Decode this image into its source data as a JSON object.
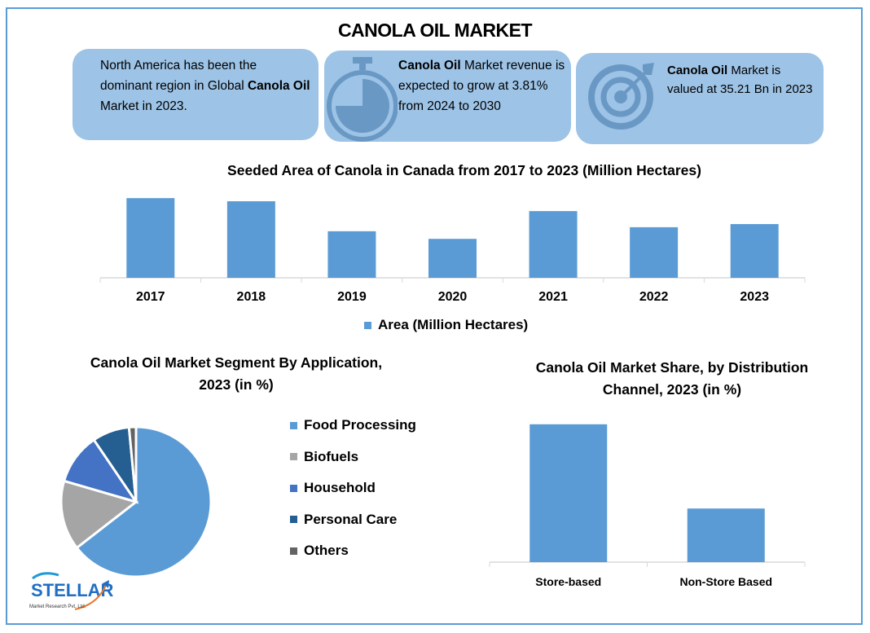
{
  "title": "CANOLA OIL MARKET",
  "cards": [
    {
      "pre": "North America has been the dominant region in Global ",
      "bold": "Canola Oil",
      "post": " Market in 2023.",
      "icon": "none"
    },
    {
      "bold": "Canola Oil",
      "post": " Market revenue is expected to grow at 3.81% from 2024 to 2030",
      "icon": "stopwatch-icon"
    },
    {
      "bold": "Canola Oil",
      "post": " Market is valued at 35.21 Bn in 2023",
      "icon": "target-arrow-icon"
    }
  ],
  "colors": {
    "bar": "#5b9bd5",
    "card": "#9dc3e6",
    "icon": "#6a98c4",
    "frame": "#5b9bd5"
  },
  "chart_data": [
    {
      "type": "bar",
      "title": "Seeded Area of Canola in Canada from 2017 to 2023 (Million Hectares)",
      "categories": [
        "2017",
        "2018",
        "2019",
        "2020",
        "2021",
        "2022",
        "2023"
      ],
      "series": [
        {
          "name": "Area (Million Hectares)",
          "values": [
            9.21,
            9.14,
            8.47,
            8.3,
            8.92,
            8.56,
            8.63
          ]
        }
      ],
      "ylim": [
        7.43,
        9.45
      ],
      "grid": false,
      "legend": "bottom"
    },
    {
      "type": "pie",
      "title": "Canola Oil Market Segment By Application, 2023 (in %)",
      "categories": [
        "Food Processing",
        "Biofuels",
        "Household",
        "Personal Care",
        "Others"
      ],
      "values": [
        64.5,
        15,
        11,
        8,
        1.5
      ],
      "colors": [
        "#5b9bd5",
        "#a5a5a5",
        "#4472c4",
        "#255e91",
        "#636363"
      ],
      "legend": "right"
    },
    {
      "type": "bar",
      "title": "Canola Oil Market Share, by Distribution Channel, 2023 (in %)",
      "categories": [
        "Store-based",
        "Non-Store Based"
      ],
      "values": [
        72,
        28
      ],
      "ylim": [
        0,
        80
      ],
      "grid": false
    }
  ],
  "logo": {
    "name": "STELLAR",
    "tagline": "Market Research Pvt. Ltd."
  }
}
